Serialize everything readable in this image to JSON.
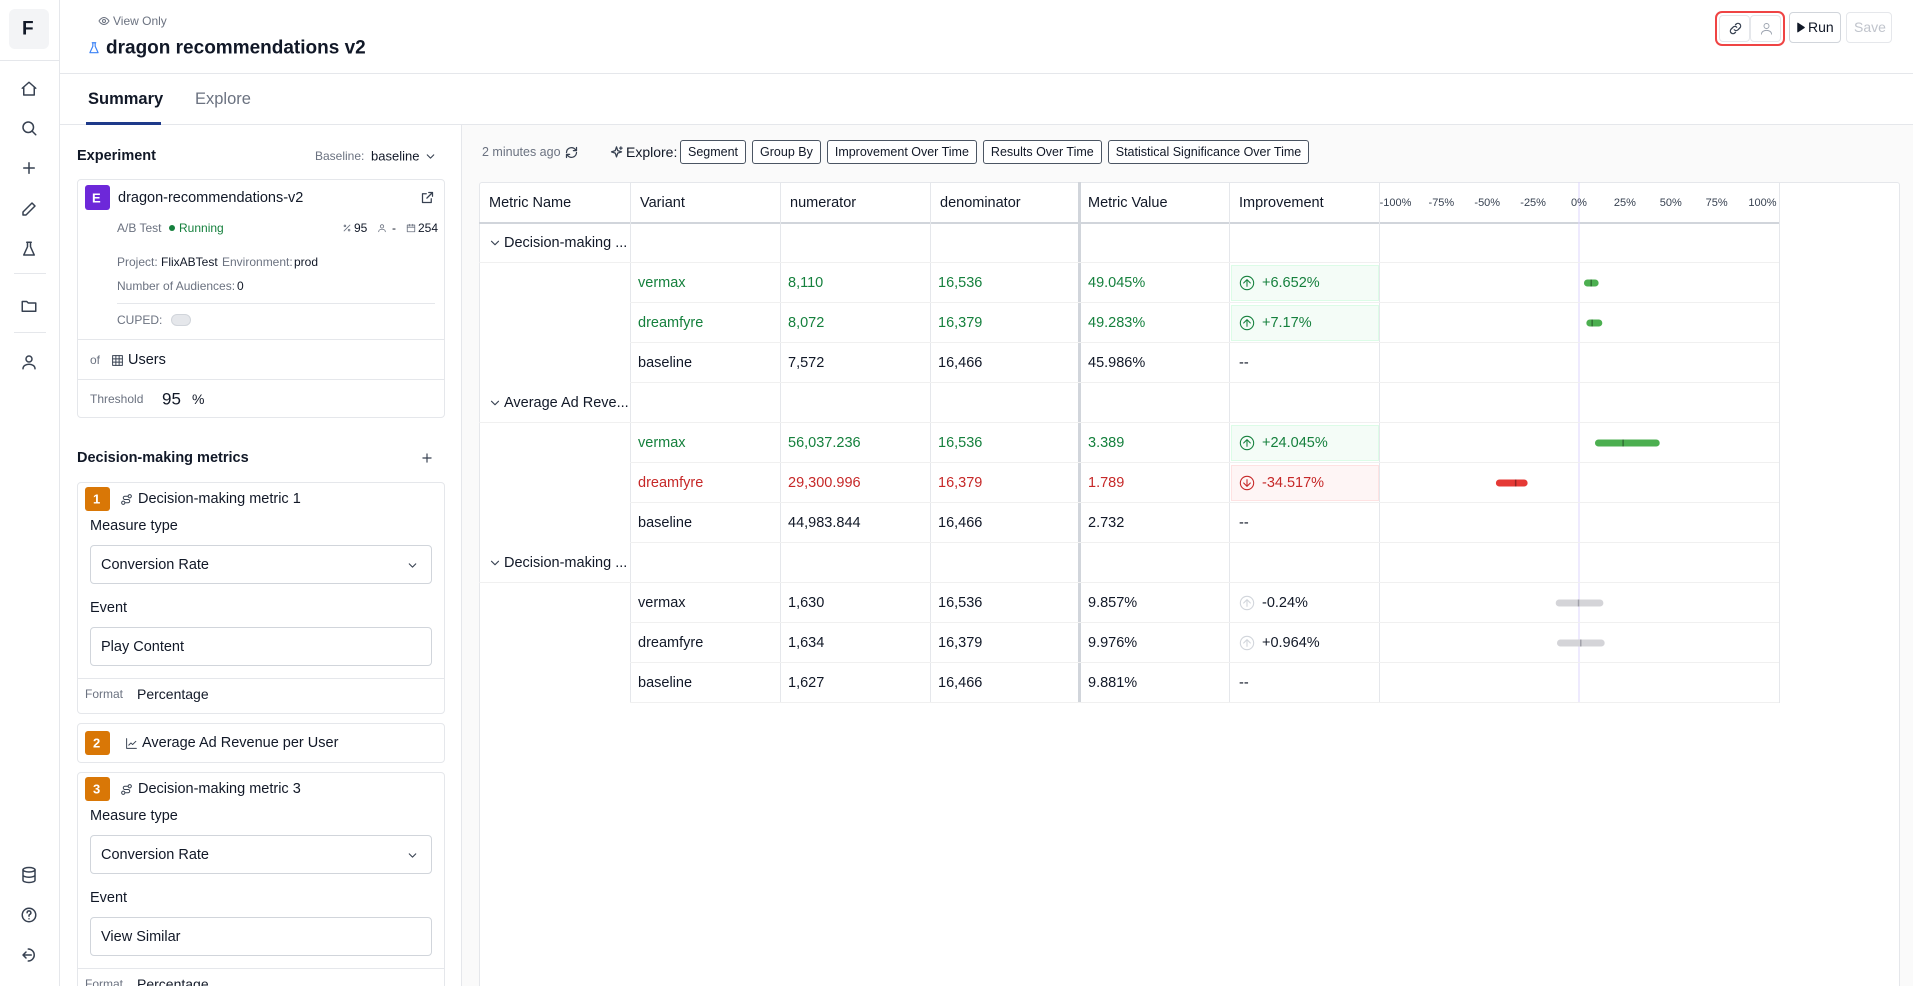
{
  "sidebar": {
    "logo": "F"
  },
  "header": {
    "view_mode": "View Only",
    "title": "dragon recommendations v2",
    "run": "Run",
    "save": "Save"
  },
  "tabs": [
    "Summary",
    "Explore"
  ],
  "experiment": {
    "heading": "Experiment",
    "baseline_label": "Baseline:",
    "baseline": "baseline",
    "badge": "E",
    "name": "dragon-recommendations-v2",
    "test_type": "A/B Test",
    "status": "Running",
    "confidence": "95",
    "audience": "-",
    "days": "254",
    "project_label": "Project:",
    "project": "FlixABTest",
    "environment_label": "Environment:",
    "environment": "prod",
    "audiences_label": "Number of Audiences:",
    "audiences": "0",
    "cuped_label": "CUPED:",
    "of_label": "of",
    "unit": "Users",
    "threshold_label": "Threshold",
    "threshold": "95",
    "threshold_unit": "%"
  },
  "metrics_panel": {
    "heading": "Decision-making metrics",
    "metrics": [
      {
        "number": "1",
        "name": "Decision-making metric 1",
        "measure_type_label": "Measure type",
        "measure_type": "Conversion Rate",
        "event_label": "Event",
        "event": "Play Content",
        "format_label": "Format",
        "format": "Percentage"
      },
      {
        "number": "2",
        "name": "Average Ad Revenue per User"
      },
      {
        "number": "3",
        "name": "Decision-making metric 3",
        "measure_type_label": "Measure type",
        "measure_type": "Conversion Rate",
        "event_label": "Event",
        "event": "View Similar",
        "format_label": "Format",
        "format": "Percentage"
      }
    ]
  },
  "toolbar": {
    "updated": "2 minutes ago",
    "explore_label": "Explore:",
    "chips": [
      "Segment",
      "Group By",
      "Improvement Over Time",
      "Results Over Time",
      "Statistical Significance Over Time"
    ]
  },
  "results": {
    "columns": [
      "Metric Name",
      "Variant",
      "numerator",
      "denominator",
      "Metric Value",
      "Improvement"
    ],
    "axis": {
      "xlim": [
        -109,
        109
      ],
      "ticks": [
        {
          "value": -100,
          "label": "-100%"
        },
        {
          "value": -75,
          "label": "-75%"
        },
        {
          "value": -50,
          "label": "-50%"
        },
        {
          "value": -25,
          "label": "-25%"
        },
        {
          "value": 0,
          "label": "0%"
        },
        {
          "value": 25,
          "label": "25%"
        },
        {
          "value": 50,
          "label": "50%"
        },
        {
          "value": 75,
          "label": "75%"
        },
        {
          "value": 100,
          "label": "100%"
        }
      ]
    },
    "groups": [
      {
        "name": "Decision-making ...",
        "rows": [
          {
            "variant": "vermax",
            "numerator": "8,110",
            "denominator": "16,536",
            "metric_value": "49.045%",
            "improvement": "+6.652%",
            "status": "positive",
            "interval": {
              "low": 2.7,
              "high": 10.7,
              "point": 6.652
            }
          },
          {
            "variant": "dreamfyre",
            "numerator": "8,072",
            "denominator": "16,379",
            "metric_value": "49.283%",
            "improvement": "+7.17%",
            "status": "positive",
            "interval": {
              "low": 4,
              "high": 12.7,
              "point": 7.17
            }
          },
          {
            "variant": "baseline",
            "numerator": "7,572",
            "denominator": "16,466",
            "metric_value": "45.986%",
            "improvement": "--",
            "status": "baseline"
          }
        ]
      },
      {
        "name": "Average Ad Reve...",
        "rows": [
          {
            "variant": "vermax",
            "numerator": "56,037.236",
            "denominator": "16,536",
            "metric_value": "3.389",
            "improvement": "+24.045%",
            "status": "positive",
            "interval": {
              "low": 8.7,
              "high": 44,
              "point": 24.045
            }
          },
          {
            "variant": "dreamfyre",
            "numerator": "29,300.996",
            "denominator": "16,379",
            "metric_value": "1.789",
            "improvement": "-34.517%",
            "status": "negative",
            "interval": {
              "low": -45.3,
              "high": -28,
              "point": -34.517
            }
          },
          {
            "variant": "baseline",
            "numerator": "44,983.844",
            "denominator": "16,466",
            "metric_value": "2.732",
            "improvement": "--",
            "status": "baseline"
          }
        ]
      },
      {
        "name": "Decision-making ...",
        "rows": [
          {
            "variant": "vermax",
            "numerator": "1,630",
            "denominator": "16,536",
            "metric_value": "9.857%",
            "improvement": "-0.24%",
            "status": "neutral",
            "interval": {
              "low": -12.7,
              "high": 13.3,
              "point": -0.24
            }
          },
          {
            "variant": "dreamfyre",
            "numerator": "1,634",
            "denominator": "16,379",
            "metric_value": "9.976%",
            "improvement": "+0.964%",
            "status": "neutral",
            "interval": {
              "low": -12,
              "high": 14,
              "point": 0.964
            }
          },
          {
            "variant": "baseline",
            "numerator": "1,627",
            "denominator": "16,466",
            "metric_value": "9.881%",
            "improvement": "--",
            "status": "baseline"
          }
        ]
      }
    ]
  }
}
